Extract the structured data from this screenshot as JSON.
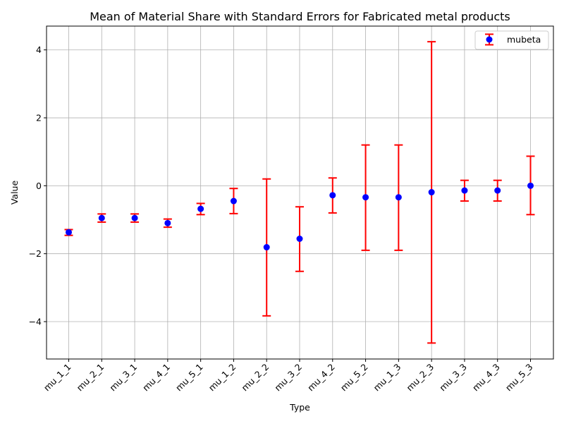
{
  "chart_data": {
    "type": "scatter",
    "title": "Mean of Material Share with Standard Errors for Fabricated metal products",
    "xlabel": "Type",
    "ylabel": "Value",
    "ylim": [
      -5.1,
      4.7
    ],
    "yticks": [
      -4,
      -2,
      0,
      2,
      4
    ],
    "grid": true,
    "legend_position": "top-right",
    "categories": [
      "mu_1_1",
      "mu_2_1",
      "mu_3_1",
      "mu_4_1",
      "mu_5_1",
      "mu_1_2",
      "mu_2_2",
      "mu_3_2",
      "mu_4_2",
      "mu_5_2",
      "mu_1_3",
      "mu_2_3",
      "mu_3_3",
      "mu_4_3",
      "mu_5_3"
    ],
    "series": [
      {
        "name": "mubeta",
        "values": [
          -1.37,
          -0.95,
          -0.95,
          -1.1,
          -0.68,
          -0.45,
          -1.81,
          -1.56,
          -0.28,
          -0.34,
          -0.34,
          -0.19,
          -0.14,
          -0.14,
          0.0
        ],
        "lower": [
          -1.46,
          -1.07,
          -1.07,
          -1.22,
          -0.85,
          -0.82,
          -3.83,
          -2.52,
          -0.8,
          -1.9,
          -1.9,
          -4.63,
          -0.45,
          -0.45,
          -0.85
        ],
        "upper": [
          -1.29,
          -0.83,
          -0.83,
          -0.98,
          -0.52,
          -0.08,
          0.2,
          -0.62,
          0.23,
          1.2,
          1.2,
          4.24,
          0.16,
          0.16,
          0.87
        ],
        "marker_color": "#0000ff",
        "errorbar_color": "#ff0000"
      }
    ]
  }
}
